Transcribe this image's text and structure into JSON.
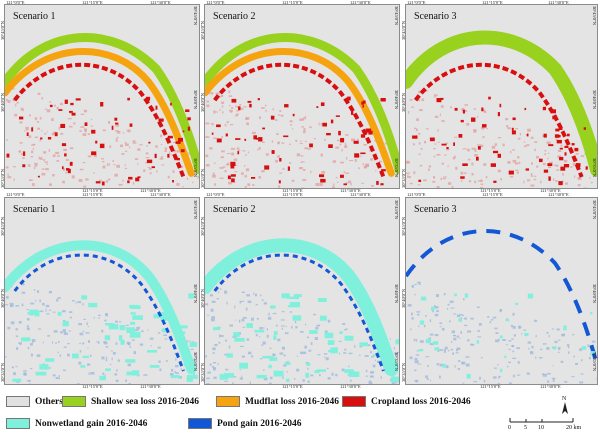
{
  "panels": [
    {
      "title": "Scenario 1",
      "type": "loss"
    },
    {
      "title": "Scenario 2",
      "type": "loss"
    },
    {
      "title": "Scenario 3",
      "type": "loss"
    },
    {
      "title": "Scenario 1",
      "type": "gain"
    },
    {
      "title": "Scenario 2",
      "type": "gain"
    },
    {
      "title": "Scenario 3",
      "type": "gain"
    }
  ],
  "ticks": {
    "lon1": "121°0'0\"E",
    "lon2": "121°15'0\"E",
    "lon3": "121°30'0\"E",
    "lat_top": "30°45'0\"N",
    "lat_mid": "30°40'0\"N",
    "lat_bot": "30°35'0\"N"
  },
  "legend": {
    "others": "Others",
    "shallow_sea_loss": "Shallow sea loss 2016-2046",
    "mudflat_loss": "Mudflat loss 2016-2046",
    "cropland_loss": "Cropland loss 2016-2046",
    "nonwetland_gain": "Nonwetland  gain 2016-2046",
    "pond_gain": "Pond gain 2016-2046"
  },
  "colors": {
    "others": "#e1e1e1",
    "shallow_sea": "#99d11f",
    "mudflat": "#f5a30f",
    "cropland": "#d80f0f",
    "nonwetland": "#7ff0dc",
    "pond": "#1257d6",
    "cropland_texture": "#e2a3a3",
    "gain_texture": "#9db9dd"
  },
  "scale": {
    "labels": [
      "0",
      "5",
      "10",
      "20 km"
    ],
    "north": "N"
  }
}
